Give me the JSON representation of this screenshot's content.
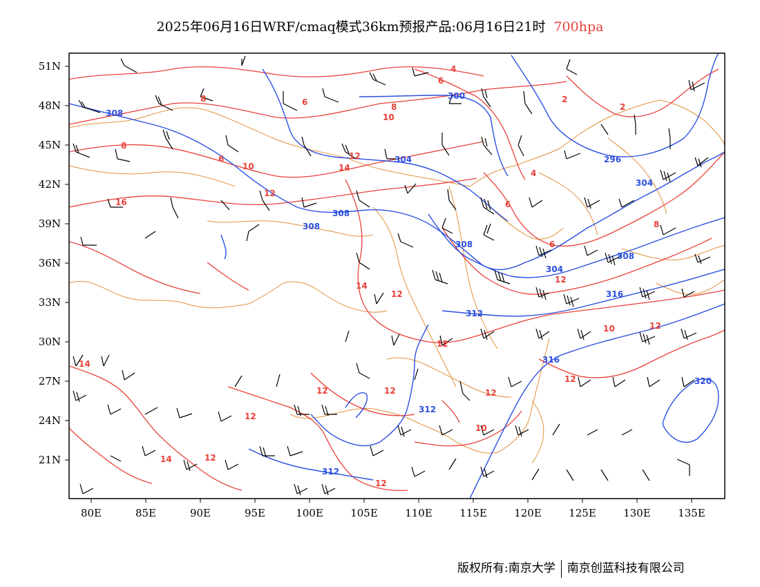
{
  "title": {
    "main": "2025年06月16日WRF/cmaq模式36km预报产品:06月16日21时",
    "level": "700hpa",
    "level_color": "#e8403a"
  },
  "axes": {
    "lat_labels": [
      "51N",
      "48N",
      "45N",
      "42N",
      "39N",
      "36N",
      "33N",
      "30N",
      "27N",
      "24N",
      "21N"
    ],
    "lon_labels": [
      "80E",
      "85E",
      "90E",
      "95E",
      "100E",
      "105E",
      "110E",
      "115E",
      "120E",
      "125E",
      "130E",
      "135E"
    ]
  },
  "colors": {
    "height_contour": "#2b4fe0",
    "temp_contour": "#e8403a",
    "borders": "#e0903a",
    "wind_barbs": "#000000"
  },
  "height_labels": [
    "308",
    "300",
    "304",
    "296",
    "304",
    "308",
    "308",
    "308",
    "304",
    "308",
    "312",
    "316",
    "316",
    "312",
    "320",
    "312"
  ],
  "temp_labels": [
    "4",
    "6",
    "2",
    "8",
    "6",
    "8",
    "10",
    "2",
    "8",
    "6",
    "10",
    "14",
    "12",
    "12",
    "4",
    "6",
    "16",
    "6",
    "8",
    "14",
    "12",
    "12",
    "10",
    "12",
    "14",
    "12",
    "12",
    "12",
    "12",
    "10",
    "12",
    "12",
    "14",
    "12",
    "12"
  ],
  "footer": {
    "left": "版权所有:南京大学",
    "right": "南京创蓝科技有限公司"
  }
}
